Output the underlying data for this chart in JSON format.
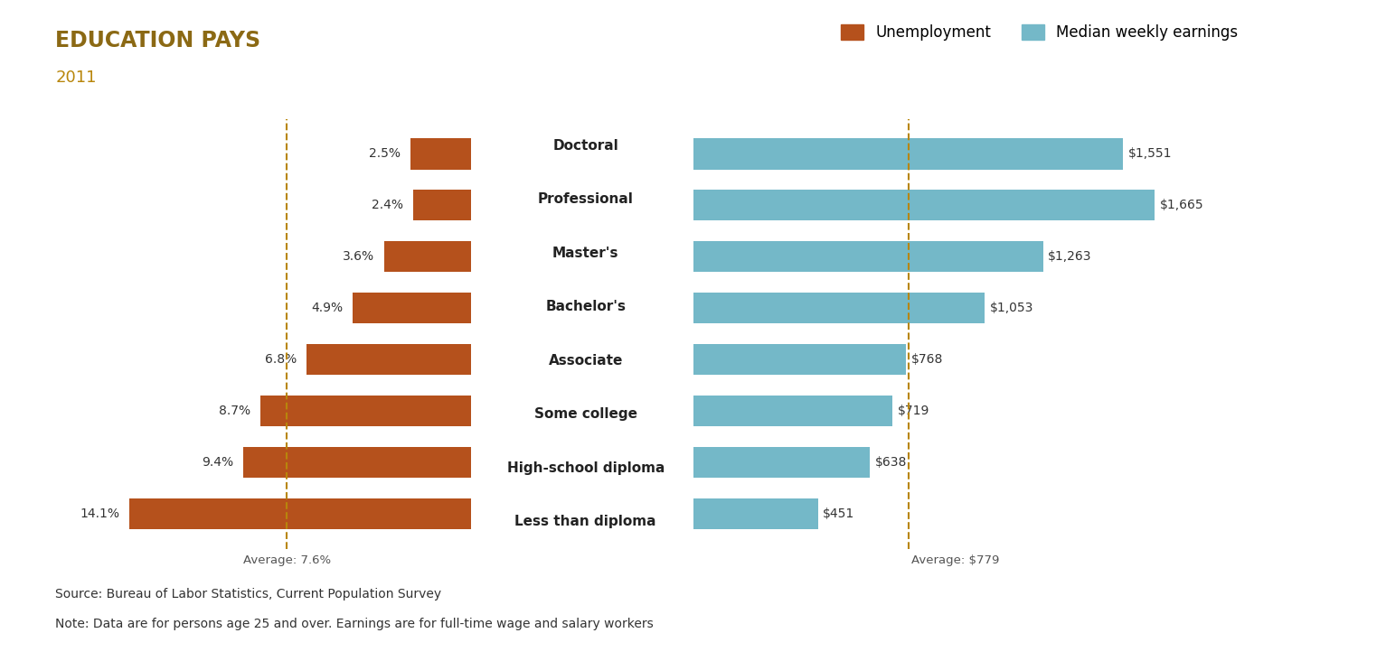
{
  "title": "EDUCATION PAYS",
  "subtitle": "2011",
  "title_color": "#8B6914",
  "subtitle_color": "#B8860B",
  "categories": [
    "Doctoral",
    "Professional",
    "Master's",
    "Bachelor's",
    "Associate",
    "Some college",
    "High-school diploma",
    "Less than diploma"
  ],
  "unemployment": [
    2.5,
    2.4,
    3.6,
    4.9,
    6.8,
    8.7,
    9.4,
    14.1
  ],
  "earnings": [
    1551,
    1665,
    1263,
    1053,
    768,
    719,
    638,
    451
  ],
  "unemployment_labels": [
    "2.5%",
    "2.4%",
    "3.6%",
    "4.9%",
    "6.8%",
    "8.7%",
    "9.4%",
    "14.1%"
  ],
  "earnings_labels": [
    "$1,551",
    "$1,665",
    "$1,263",
    "$1,053",
    "$768",
    "$719",
    "$638",
    "$451"
  ],
  "unemployment_color": "#B5511C",
  "earnings_color": "#74B8C8",
  "avg_unemployment": 7.6,
  "avg_earnings": 779,
  "avg_unemployment_label": "Average: 7.6%",
  "avg_earnings_label": "Average: $779",
  "legend_unemployment": "Unemployment",
  "legend_earnings": "Median weekly earnings",
  "source_line1": "Source: Bureau of Labor Statistics, Current Population Survey",
  "source_line2": "Note: Data are for persons age 25 and over. Earnings are for full-time wage and salary workers",
  "background_color": "#FFFFFF",
  "dashed_line_color": "#B8860B"
}
